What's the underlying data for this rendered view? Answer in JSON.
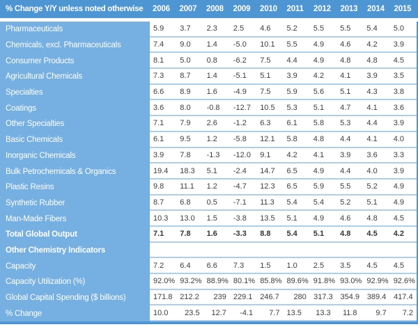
{
  "chart_data": {
    "type": "table",
    "title": "% Change Y/Y unless noted otherwise",
    "columns": [
      "2006",
      "2007",
      "2008",
      "2009",
      "2010",
      "2011",
      "2012",
      "2013",
      "2014",
      "2015"
    ],
    "rows": [
      {
        "label": "Pharmaceuticals",
        "values": [
          "5.9",
          "3.7",
          "2.3",
          "2.5",
          "4.6",
          "5.2",
          "5.5",
          "5.5",
          "5.4",
          "5.0"
        ]
      },
      {
        "label": "Chemicals, excl. Pharmaceuticals",
        "values": [
          "7.4",
          "9.0",
          "1.4",
          "-5.0",
          "10.1",
          "5.5",
          "4.9",
          "4.6",
          "4.2",
          "3.9"
        ]
      },
      {
        "label": "Consumer Products",
        "values": [
          "8.1",
          "5.0",
          "0.8",
          "-6.2",
          "7.5",
          "4.4",
          "4.9",
          "4.8",
          "4.8",
          "4.5"
        ]
      },
      {
        "label": "Agricultural Chemicals",
        "values": [
          "7.3",
          "8.7",
          "1.4",
          "-5.1",
          "5.1",
          "3.9",
          "4.2",
          "4.1",
          "3.9",
          "3.5"
        ]
      },
      {
        "label": "Specialties",
        "values": [
          "6.6",
          "8.9",
          "1.6",
          "-4.9",
          "7.5",
          "5.9",
          "5.6",
          "5.1",
          "4.3",
          "3.8"
        ]
      },
      {
        "label": "Coatings",
        "values": [
          "3.6",
          "8.0",
          "-0.8",
          "-12.7",
          "10.5",
          "5.3",
          "5.1",
          "4.7",
          "4.1",
          "3.6"
        ]
      },
      {
        "label": "Other Specialties",
        "values": [
          "7.1",
          "7.9",
          "2.6",
          "-1.2",
          "6.3",
          "6.1",
          "5.8",
          "5.3",
          "4.4",
          "3.9"
        ]
      },
      {
        "label": "Basic Chemicals",
        "values": [
          "6.1",
          "9.5",
          "1.2",
          "-5.8",
          "12.1",
          "5.8",
          "4.8",
          "4.4",
          "4.1",
          "4.0"
        ]
      },
      {
        "label": "Inorganic Chemicals",
        "values": [
          "3.9",
          "7.8",
          "-1.3",
          "-12.0",
          "9.1",
          "4.2",
          "4.1",
          "3.9",
          "3.6",
          "3.3"
        ]
      },
      {
        "label": "Bulk Petrochemicals & Organics",
        "values": [
          "19.4",
          "18.3",
          "5.1",
          "-2.4",
          "14.7",
          "6.5",
          "4.9",
          "4.4",
          "4.0",
          "3.9"
        ]
      },
      {
        "label": "Plastic Resins",
        "values": [
          "9.8",
          "11.1",
          "1.2",
          "-4.7",
          "12.3",
          "6.5",
          "5.9",
          "5.5",
          "5.2",
          "4.9"
        ]
      },
      {
        "label": "Synthetic Rubber",
        "values": [
          "8.7",
          "6.8",
          "0.5",
          "-7.1",
          "11.3",
          "5.4",
          "5.4",
          "5.2",
          "5.1",
          "4.9"
        ]
      },
      {
        "label": "Man-Made Fibers",
        "values": [
          "10.3",
          "13.0",
          "1.5",
          "-3.8",
          "13.5",
          "5.1",
          "4.9",
          "4.6",
          "4.8",
          "4.5"
        ]
      },
      {
        "label": "Total Global Output",
        "bold": true,
        "values": [
          "7.1",
          "7.8",
          "1.6",
          "-3.3",
          "8.8",
          "5.4",
          "5.1",
          "4.8",
          "4.5",
          "4.2"
        ]
      },
      {
        "label": "Other Chemistry Indicators",
        "bold": true,
        "section": true,
        "values": [
          "",
          "",
          "",
          "",
          "",
          "",
          "",
          "",
          "",
          ""
        ]
      },
      {
        "label": "Capacity",
        "values": [
          "7.2",
          "6.4",
          "6.6",
          "7.3",
          "1.5",
          "1.0",
          "2.5",
          "3.5",
          "4.5",
          "4.5"
        ]
      },
      {
        "label": "Capacity Utilization (%)",
        "values": [
          "92.0%",
          "93.2%",
          "88.9%",
          "80.1%",
          "85.8%",
          "89.6%",
          "91.8%",
          "93.0%",
          "92.9%",
          "92.6%"
        ]
      },
      {
        "label": "Global Capital Spending ($ billions)",
        "values": [
          "171.8",
          "212.2",
          "239",
          "229.1",
          "246.7",
          "280",
          "317.3",
          "354.9",
          "389.4",
          "417.4"
        ],
        "align": [
          "left",
          "left",
          "right",
          "left",
          "left",
          "right",
          "center",
          "center",
          "center",
          "center"
        ]
      },
      {
        "label": "% Change",
        "values": [
          "10.0",
          "23.5",
          "12.7",
          "-4.1",
          "7.7",
          "13.5",
          "13.3",
          "11.8",
          "9.7",
          "7.2"
        ],
        "align": [
          "left",
          "right",
          "right",
          "right",
          "right",
          "left",
          "center",
          "center",
          "right",
          "right"
        ]
      }
    ]
  },
  "colors": {
    "header_bg": "#4E95D3",
    "label_bg": "#76AFE1",
    "separator": "#AECFEC",
    "border": "#4E95D3",
    "value_text": "#3C3C3C",
    "header_text": "#FFFFFF"
  }
}
